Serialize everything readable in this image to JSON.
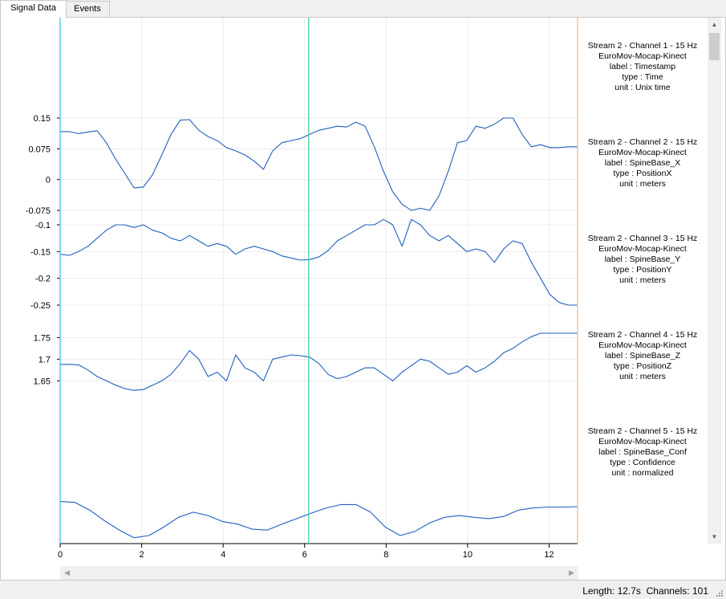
{
  "tabs": [
    {
      "label": "Signal Data",
      "active": true
    },
    {
      "label": "Events",
      "active": false
    }
  ],
  "x_axis": {
    "ticks": [
      0,
      2,
      4,
      6,
      8,
      10,
      12
    ],
    "range": [
      0,
      12.7
    ]
  },
  "markers": {
    "cursor_left": 0,
    "cursor_current": 6.1,
    "end": 12.7,
    "cursor_left_color": "#5bc8f5",
    "cursor_current_color": "#50d8a8",
    "end_color": "#f0b090"
  },
  "signal_color": "#1f5fbf",
  "channels": [
    {
      "title": "Stream 2 - Channel 1 - 15 Hz",
      "stream": "EuroMov-Mocap-Kinect",
      "label": "label : Timestamp",
      "type": "type : Time",
      "unit": "unit : Unix time",
      "ticks": [],
      "range": [
        0,
        1
      ],
      "values": []
    },
    {
      "title": "Stream 2 - Channel 2 - 15 Hz",
      "stream": "EuroMov-Mocap-Kinect",
      "label": "label : SpineBase_X",
      "type": "type : PositionX",
      "unit": "unit : meters",
      "ticks": [
        "0.15",
        "0.075",
        "0",
        "-0.075"
      ],
      "range": [
        -0.075,
        0.15
      ],
      "values": [
        0.117,
        0.117,
        0.112,
        0.116,
        0.119,
        0.09,
        0.05,
        0.015,
        -0.02,
        -0.018,
        0.012,
        0.06,
        0.11,
        0.145,
        0.146,
        0.12,
        0.105,
        0.095,
        0.078,
        0.07,
        0.06,
        0.045,
        0.025,
        0.07,
        0.09,
        0.095,
        0.1,
        0.11,
        0.12,
        0.125,
        0.13,
        0.128,
        0.14,
        0.13,
        0.08,
        0.02,
        -0.03,
        -0.06,
        -0.075,
        -0.07,
        -0.075,
        -0.04,
        0.02,
        0.09,
        0.095,
        0.13,
        0.125,
        0.135,
        0.15,
        0.15,
        0.11,
        0.08,
        0.085,
        0.078,
        0.078,
        0.08,
        0.08
      ]
    },
    {
      "title": "Stream 2 - Channel 3 - 15 Hz",
      "stream": "EuroMov-Mocap-Kinect",
      "label": "label : SpineBase_Y",
      "type": "type : PositionY",
      "unit": "unit : meters",
      "ticks": [
        "-0.1",
        "-0.15",
        "-0.2",
        "-0.25"
      ],
      "range": [
        -0.25,
        -0.1
      ],
      "values": [
        -0.155,
        -0.157,
        -0.15,
        -0.14,
        -0.125,
        -0.11,
        -0.1,
        -0.1,
        -0.105,
        -0.1,
        -0.11,
        -0.115,
        -0.125,
        -0.13,
        -0.12,
        -0.13,
        -0.14,
        -0.135,
        -0.14,
        -0.155,
        -0.145,
        -0.14,
        -0.145,
        -0.15,
        -0.158,
        -0.162,
        -0.166,
        -0.165,
        -0.16,
        -0.148,
        -0.13,
        -0.12,
        -0.11,
        -0.1,
        -0.1,
        -0.09,
        -0.1,
        -0.14,
        -0.09,
        -0.1,
        -0.12,
        -0.13,
        -0.12,
        -0.135,
        -0.15,
        -0.145,
        -0.15,
        -0.17,
        -0.145,
        -0.13,
        -0.135,
        -0.17,
        -0.2,
        -0.23,
        -0.245,
        -0.25,
        -0.25
      ]
    },
    {
      "title": "Stream 2 - Channel 4 - 15 Hz",
      "stream": "EuroMov-Mocap-Kinect",
      "label": "label : SpineBase_Z",
      "type": "type : PositionZ",
      "unit": "unit : meters",
      "ticks": [
        "1.75",
        "1.7",
        "1.65"
      ],
      "range": [
        1.645,
        1.76
      ],
      "values": [
        1.688,
        1.688,
        1.687,
        1.675,
        1.66,
        1.65,
        1.64,
        1.632,
        1.628,
        1.63,
        1.64,
        1.65,
        1.665,
        1.69,
        1.72,
        1.7,
        1.66,
        1.67,
        1.65,
        1.71,
        1.68,
        1.67,
        1.65,
        1.7,
        1.705,
        1.71,
        1.708,
        1.705,
        1.69,
        1.665,
        1.655,
        1.66,
        1.67,
        1.68,
        1.68,
        1.665,
        1.65,
        1.67,
        1.685,
        1.7,
        1.695,
        1.68,
        1.665,
        1.67,
        1.685,
        1.67,
        1.68,
        1.695,
        1.715,
        1.725,
        1.74,
        1.752,
        1.76,
        1.76,
        1.76,
        1.76,
        1.76
      ]
    },
    {
      "title": "Stream 2 - Channel 5 - 15 Hz",
      "stream": "EuroMov-Mocap-Kinect",
      "label": "label : SpineBase_Conf",
      "type": "type : Confidence",
      "unit": "unit : normalized",
      "ticks": [],
      "range": [
        0,
        1
      ],
      "values": [
        0.95,
        0.93,
        0.75,
        0.5,
        0.28,
        0.1,
        0.15,
        0.35,
        0.58,
        0.7,
        0.62,
        0.48,
        0.42,
        0.3,
        0.28,
        0.42,
        0.55,
        0.68,
        0.8,
        0.88,
        0.88,
        0.7,
        0.35,
        0.15,
        0.25,
        0.45,
        0.58,
        0.62,
        0.58,
        0.55,
        0.6,
        0.75,
        0.8,
        0.82,
        0.82,
        0.83
      ]
    }
  ],
  "status": {
    "length": "Length: 12.7s",
    "channels": "Channels: 101"
  }
}
